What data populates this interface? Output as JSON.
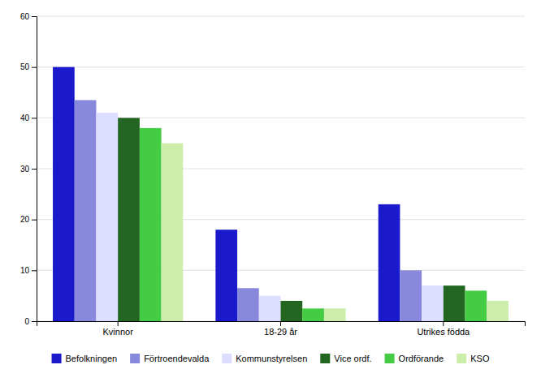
{
  "chart_data": {
    "type": "bar",
    "categories": [
      "Kvinnor",
      "18-29 år",
      "Utrikes födda"
    ],
    "series": [
      {
        "name": "Befolkningen",
        "color": "#1a1acc",
        "values": [
          50,
          18,
          23
        ]
      },
      {
        "name": "Förtroendevalda",
        "color": "#8888dd",
        "values": [
          43.5,
          6.5,
          10
        ]
      },
      {
        "name": "Kommunstyrelsen",
        "color": "#ddddff",
        "values": [
          41,
          5,
          7
        ]
      },
      {
        "name": "Vice ordf.",
        "color": "#226622",
        "values": [
          40,
          4,
          7
        ]
      },
      {
        "name": "Ordförande",
        "color": "#44cc44",
        "values": [
          38,
          2.5,
          6
        ]
      },
      {
        "name": "KSO",
        "color": "#cceeaa",
        "values": [
          35,
          2.5,
          4
        ]
      }
    ],
    "ylim": [
      0,
      60
    ],
    "yticks": [
      0,
      10,
      20,
      30,
      40,
      50,
      60
    ],
    "grid": true,
    "legend": "bottom"
  }
}
